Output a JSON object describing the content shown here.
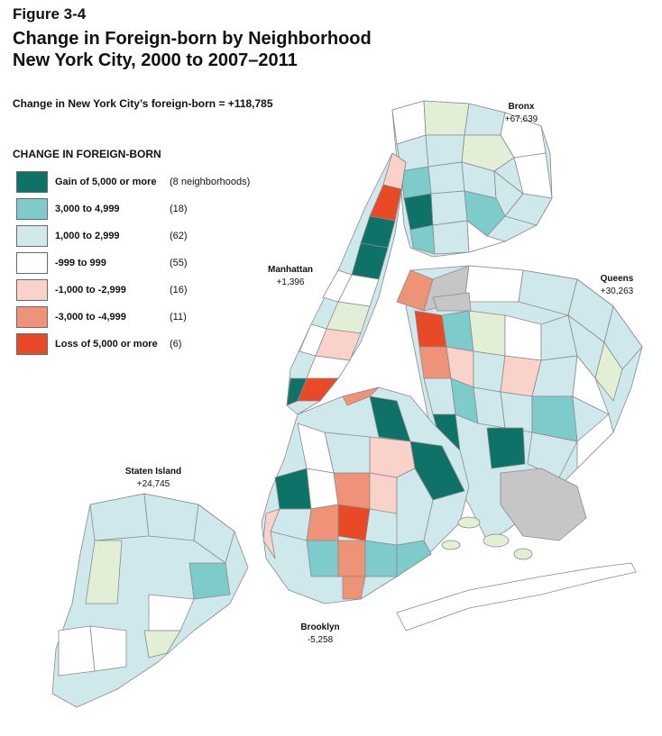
{
  "figure_label": "Figure 3-4",
  "title_line1": "Change in Foreign-born by Neighborhood",
  "title_line2": "New York City, 2000 to 2007–2011",
  "subtitle": "Change in New York City’s foreign-born = +118,785",
  "legend": {
    "title": "CHANGE IN FOREIGN-BORN",
    "items": [
      {
        "label": "Gain of 5,000 or more",
        "count": "(8 neighborhoods)",
        "color": "#0f7269"
      },
      {
        "label": "3,000 to 4,999",
        "count": "(18)",
        "color": "#7ecbcb"
      },
      {
        "label": "1,000 to 2,999",
        "count": "(62)",
        "color": "#cfe8ec"
      },
      {
        "label": "-999 to 999",
        "count": "(55)",
        "color": "#ffffff"
      },
      {
        "label": "-1,000 to -2,999",
        "count": "(16)",
        "color": "#f9d3c9"
      },
      {
        "label": "-3,000 to -4,999",
        "count": "(11)",
        "color": "#ef9378"
      },
      {
        "label": "Loss of 5,000 or more",
        "count": "(6)",
        "color": "#e84a27"
      }
    ]
  },
  "boroughs": {
    "bronx": {
      "name": "Bronx",
      "value": "+67,639"
    },
    "manhattan": {
      "name": "Manhattan",
      "value": "+1,396"
    },
    "queens": {
      "name": "Queens",
      "value": "+30,263"
    },
    "staten_island": {
      "name": "Staten Island",
      "value": "+24,745"
    },
    "brooklyn": {
      "name": "Brooklyn",
      "value": "-5,258"
    }
  },
  "colors": {
    "green_gray": "#e3eed6",
    "park_gray": "#c6c6c6",
    "border": "#8a8a8a"
  }
}
